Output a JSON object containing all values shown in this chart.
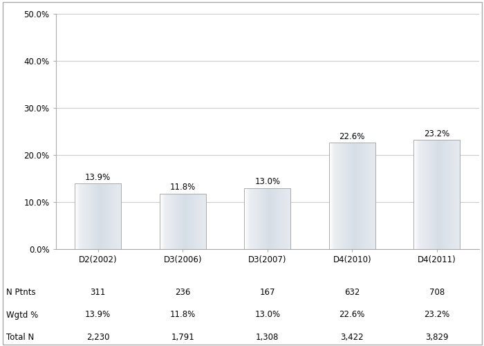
{
  "categories": [
    "D2(2002)",
    "D3(2006)",
    "D3(2007)",
    "D4(2010)",
    "D4(2011)"
  ],
  "values": [
    13.9,
    11.8,
    13.0,
    22.6,
    23.2
  ],
  "bar_labels": [
    "13.9%",
    "11.8%",
    "13.0%",
    "22.6%",
    "23.2%"
  ],
  "n_ptnts": [
    "311",
    "236",
    "167",
    "632",
    "708"
  ],
  "wgtd_pct": [
    "13.9%",
    "11.8%",
    "13.0%",
    "22.6%",
    "23.2%"
  ],
  "total_n": [
    "2,230",
    "1,791",
    "1,308",
    "3,422",
    "3,829"
  ],
  "ylim": [
    0,
    0.5
  ],
  "yticks": [
    0.0,
    0.1,
    0.2,
    0.3,
    0.4,
    0.5
  ],
  "ytick_labels": [
    "0.0%",
    "10.0%",
    "20.0%",
    "30.0%",
    "40.0%",
    "50.0%"
  ],
  "background_color": "#ffffff",
  "grid_color": "#cccccc",
  "table_row_labels": [
    "N Ptnts",
    "Wgtd %",
    "Total N"
  ],
  "label_fontsize": 8.5,
  "tick_fontsize": 8.5,
  "table_fontsize": 8.5,
  "bar_width": 0.55
}
